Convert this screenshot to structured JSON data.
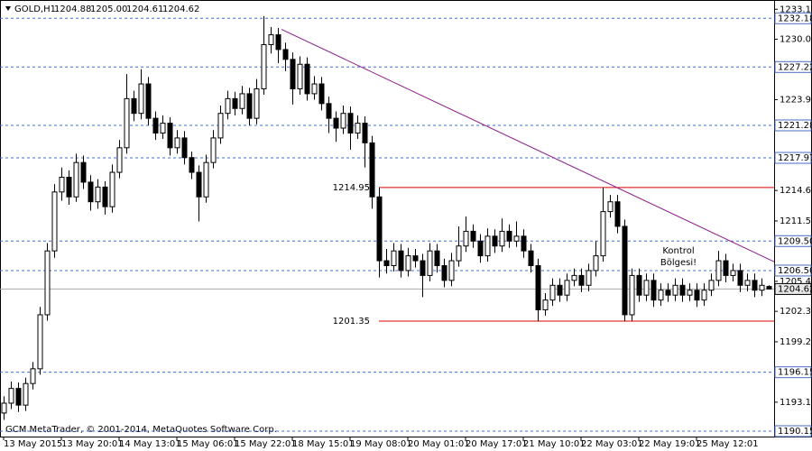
{
  "chart_data": {
    "type": "candlestick",
    "header": {
      "symbol": "GOLD,H1",
      "quotes": [
        "1204.88",
        "1205.00",
        "1204.61",
        "1204.62"
      ]
    },
    "footer": "GCM MetaTrader, © 2001-2014, MetaQuotes Software Corp.",
    "categories": [
      "13 May 2015",
      "13 May 20:01",
      "14 May 13:01",
      "15 May 06:01",
      "15 May 22:01",
      "18 May 15:01",
      "19 May 08:01",
      "20 May 01:01",
      "20 May 17:01",
      "21 May 10:01",
      "22 May 03:01",
      "22 May 19:01",
      "25 May 12:01"
    ],
    "ohlc": [
      [
        1192.0,
        1193.7,
        1191.3,
        1193.0
      ],
      [
        1193.0,
        1195.2,
        1192.4,
        1194.5
      ],
      [
        1194.5,
        1195.1,
        1192.1,
        1192.8
      ],
      [
        1192.8,
        1195.6,
        1192.2,
        1195.0
      ],
      [
        1195.0,
        1197.2,
        1194.4,
        1196.5
      ],
      [
        1196.5,
        1202.8,
        1195.9,
        1202.0
      ],
      [
        1202.0,
        1209.3,
        1201.4,
        1208.5
      ],
      [
        1208.5,
        1215.3,
        1207.8,
        1214.5
      ],
      [
        1214.5,
        1217.0,
        1213.6,
        1216.0
      ],
      [
        1216.0,
        1216.7,
        1213.2,
        1214.0
      ],
      [
        1214.0,
        1218.4,
        1213.5,
        1217.5
      ],
      [
        1217.5,
        1218.2,
        1214.8,
        1215.5
      ],
      [
        1215.5,
        1216.2,
        1212.6,
        1213.5
      ],
      [
        1213.5,
        1215.8,
        1212.8,
        1215.0
      ],
      [
        1215.0,
        1215.6,
        1212.2,
        1213.0
      ],
      [
        1213.0,
        1217.3,
        1212.4,
        1216.5
      ],
      [
        1216.5,
        1219.8,
        1215.9,
        1219.0
      ],
      [
        1219.0,
        1226.5,
        1218.4,
        1224.0
      ],
      [
        1224.0,
        1224.8,
        1221.7,
        1222.5
      ],
      [
        1222.5,
        1227.0,
        1221.9,
        1225.5
      ],
      [
        1225.5,
        1226.2,
        1221.3,
        1222.0
      ],
      [
        1222.0,
        1222.7,
        1219.8,
        1220.5
      ],
      [
        1220.5,
        1222.3,
        1219.9,
        1221.5
      ],
      [
        1221.5,
        1222.1,
        1218.2,
        1219.0
      ],
      [
        1219.0,
        1220.8,
        1218.4,
        1220.0
      ],
      [
        1220.0,
        1220.7,
        1217.3,
        1218.0
      ],
      [
        1218.0,
        1218.6,
        1215.8,
        1216.5
      ],
      [
        1216.5,
        1217.2,
        1211.5,
        1214.0
      ],
      [
        1214.0,
        1218.3,
        1213.4,
        1217.5
      ],
      [
        1217.5,
        1220.8,
        1216.9,
        1220.0
      ],
      [
        1220.0,
        1223.3,
        1219.4,
        1222.5
      ],
      [
        1222.5,
        1224.8,
        1221.9,
        1224.0
      ],
      [
        1224.0,
        1224.7,
        1222.3,
        1223.0
      ],
      [
        1223.0,
        1225.3,
        1222.4,
        1224.5
      ],
      [
        1224.5,
        1225.1,
        1221.3,
        1222.0
      ],
      [
        1222.0,
        1226.0,
        1221.4,
        1225.0
      ],
      [
        1225.0,
        1232.4,
        1224.4,
        1229.5
      ],
      [
        1229.5,
        1231.3,
        1228.6,
        1230.5
      ],
      [
        1230.5,
        1231.2,
        1227.6,
        1229.0
      ],
      [
        1229.0,
        1229.7,
        1226.8,
        1228.0
      ],
      [
        1228.0,
        1228.7,
        1223.4,
        1225.0
      ],
      [
        1225.0,
        1228.3,
        1224.4,
        1227.5
      ],
      [
        1227.5,
        1228.2,
        1223.8,
        1224.5
      ],
      [
        1224.5,
        1226.3,
        1223.9,
        1225.5
      ],
      [
        1225.5,
        1226.2,
        1222.8,
        1223.5
      ],
      [
        1223.5,
        1224.2,
        1220.5,
        1222.0
      ],
      [
        1222.0,
        1222.7,
        1219.6,
        1221.0
      ],
      [
        1221.0,
        1223.3,
        1220.4,
        1222.5
      ],
      [
        1222.5,
        1223.2,
        1218.8,
        1220.5
      ],
      [
        1220.5,
        1222.3,
        1219.9,
        1221.5
      ],
      [
        1221.5,
        1222.2,
        1217.0,
        1219.5
      ],
      [
        1219.5,
        1220.2,
        1212.8,
        1214.0
      ],
      [
        1214.0,
        1214.95,
        1205.8,
        1207.5
      ],
      [
        1207.5,
        1208.7,
        1206.2,
        1207.0
      ],
      [
        1207.0,
        1209.3,
        1206.4,
        1208.5
      ],
      [
        1208.5,
        1209.2,
        1205.8,
        1206.5
      ],
      [
        1206.5,
        1208.8,
        1205.9,
        1208.0
      ],
      [
        1208.0,
        1208.7,
        1206.8,
        1207.5
      ],
      [
        1207.5,
        1208.2,
        1203.8,
        1206.0
      ],
      [
        1206.0,
        1209.3,
        1205.4,
        1208.5
      ],
      [
        1208.5,
        1209.2,
        1206.3,
        1207.0
      ],
      [
        1207.0,
        1207.7,
        1204.8,
        1205.5
      ],
      [
        1205.5,
        1208.3,
        1204.9,
        1207.5
      ],
      [
        1207.5,
        1211.0,
        1206.9,
        1209.0
      ],
      [
        1209.0,
        1212.0,
        1208.4,
        1210.5
      ],
      [
        1210.5,
        1211.2,
        1208.8,
        1209.5
      ],
      [
        1209.5,
        1210.2,
        1207.3,
        1208.0
      ],
      [
        1208.0,
        1210.8,
        1207.4,
        1210.0
      ],
      [
        1210.0,
        1210.7,
        1208.3,
        1209.0
      ],
      [
        1209.0,
        1211.8,
        1208.4,
        1210.5
      ],
      [
        1210.5,
        1211.2,
        1208.8,
        1209.5
      ],
      [
        1209.5,
        1211.5,
        1208.9,
        1210.0
      ],
      [
        1210.0,
        1210.7,
        1207.8,
        1208.5
      ],
      [
        1208.5,
        1209.2,
        1206.3,
        1207.0
      ],
      [
        1207.0,
        1207.7,
        1201.35,
        1202.5
      ],
      [
        1202.5,
        1204.2,
        1201.9,
        1203.5
      ],
      [
        1203.5,
        1205.7,
        1202.9,
        1205.0
      ],
      [
        1205.0,
        1205.7,
        1203.3,
        1204.0
      ],
      [
        1204.0,
        1206.2,
        1203.4,
        1205.5
      ],
      [
        1205.5,
        1206.7,
        1204.9,
        1206.0
      ],
      [
        1206.0,
        1206.7,
        1204.3,
        1205.0
      ],
      [
        1205.0,
        1207.2,
        1204.4,
        1206.5
      ],
      [
        1206.5,
        1209.5,
        1205.9,
        1208.0
      ],
      [
        1208.0,
        1214.95,
        1207.4,
        1212.5
      ],
      [
        1212.5,
        1214.2,
        1211.9,
        1213.5
      ],
      [
        1213.5,
        1214.2,
        1210.3,
        1211.0
      ],
      [
        1211.0,
        1211.7,
        1201.35,
        1202.0
      ],
      [
        1202.0,
        1206.7,
        1201.4,
        1206.0
      ],
      [
        1206.0,
        1206.7,
        1203.3,
        1204.0
      ],
      [
        1204.0,
        1206.2,
        1203.4,
        1205.5
      ],
      [
        1205.5,
        1206.2,
        1202.8,
        1203.5
      ],
      [
        1203.5,
        1205.2,
        1202.9,
        1204.5
      ],
      [
        1204.5,
        1205.2,
        1203.3,
        1204.0
      ],
      [
        1204.0,
        1205.7,
        1203.4,
        1205.0
      ],
      [
        1205.0,
        1205.7,
        1203.3,
        1204.0
      ],
      [
        1204.0,
        1205.2,
        1203.4,
        1204.5
      ],
      [
        1204.5,
        1205.2,
        1202.8,
        1203.5
      ],
      [
        1203.5,
        1205.2,
        1202.9,
        1204.5
      ],
      [
        1204.5,
        1206.2,
        1203.9,
        1205.5
      ],
      [
        1205.5,
        1208.5,
        1204.9,
        1207.5
      ],
      [
        1207.5,
        1208.2,
        1205.3,
        1206.0
      ],
      [
        1206.0,
        1207.2,
        1205.4,
        1206.5
      ],
      [
        1206.5,
        1207.2,
        1204.3,
        1205.0
      ],
      [
        1205.0,
        1206.2,
        1204.4,
        1205.5
      ],
      [
        1205.5,
        1206.2,
        1203.8,
        1204.5
      ],
      [
        1204.5,
        1205.7,
        1203.9,
        1205.0
      ],
      [
        1204.88,
        1205.0,
        1204.61,
        1204.62
      ]
    ],
    "ylim": [
      1189.6,
      1233.95
    ],
    "yticks": [
      {
        "value": 1233.1,
        "label": "1233.10"
      },
      1230.05,
      {
        "value": 1223.9,
        "label": "1223.90"
      },
      1214.65,
      1211.55,
      {
        "value": 1205.4,
        "label": "1205.40"
      },
      1202.35,
      1199.25,
      {
        "value": 1193.1,
        "label": "1193.10"
      }
    ],
    "levels": [
      1232.18,
      1227.22,
      1221.28,
      1217.97,
      {
        "value": 1209.5,
        "label": "1209.50"
      },
      {
        "value": 1206.5,
        "label": "1206.50"
      },
      1196.15,
      1190.15
    ],
    "current_price": 1204.62,
    "horizontal_lines": [
      1214.95,
      1201.35
    ],
    "trendline": [
      1231.05,
      1207.4
    ],
    "annotation": [
      "Kontrol",
      "Bölgesi!"
    ],
    "colors": {
      "level": "#4a6cc4",
      "horizontal": "#e00000",
      "trend": "#8a1a8a",
      "current": "#aaaaaa"
    }
  }
}
